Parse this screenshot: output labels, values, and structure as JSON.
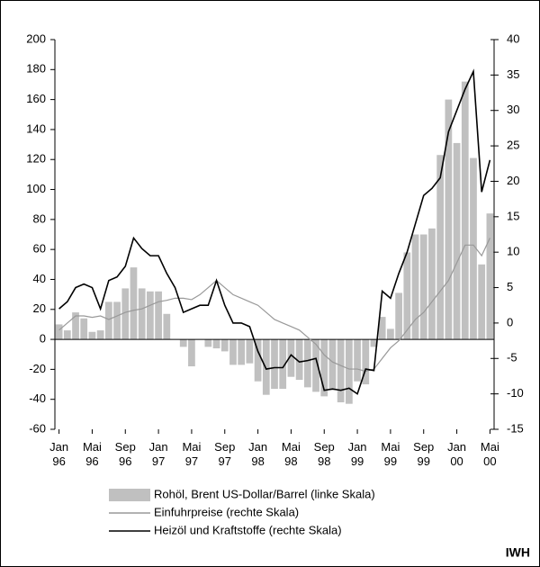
{
  "chart_data": {
    "type": "bar_line",
    "categories": [
      "Jan 96",
      null,
      null,
      null,
      "Mai 96",
      null,
      null,
      null,
      "Sep 96",
      null,
      null,
      null,
      "Jan 97",
      null,
      null,
      null,
      "Mai 97",
      null,
      null,
      null,
      "Sep 97",
      null,
      null,
      null,
      "Jan 98",
      null,
      null,
      null,
      "Mai 98",
      null,
      null,
      null,
      "Sep 98",
      null,
      null,
      null,
      "Jan 99",
      null,
      null,
      null,
      "Mai 99",
      null,
      null,
      null,
      "Sep 99",
      null,
      null,
      null,
      "Jan 00",
      null,
      null,
      null,
      "Mai 00"
    ],
    "series": [
      {
        "name": "Rohöl, Brent US-Dollar/Barrel (linke Skala)",
        "color": "#c0c0c0",
        "kind": "bar",
        "values": [
          10,
          6,
          18,
          14,
          5,
          6,
          25,
          25,
          34,
          48,
          34,
          32,
          32,
          17,
          0,
          -5,
          -18,
          0,
          -5,
          -6,
          -8,
          -17,
          -17,
          -16,
          -28,
          -37,
          -33,
          -33,
          -25,
          -27,
          -32,
          -35,
          -38,
          -34,
          -42,
          -43,
          -28,
          -30,
          -5,
          15,
          7,
          31,
          58,
          70,
          70,
          74,
          123,
          160,
          131,
          172,
          121,
          50,
          84
        ]
      },
      {
        "name": "Einfuhrpreise (rechte Skala)",
        "color": "#999999",
        "kind": "line",
        "axis": "y2",
        "values": [
          -1,
          0,
          1,
          1,
          0.8,
          1,
          0.5,
          1,
          1.5,
          1.8,
          2,
          2.5,
          3,
          3.2,
          3.5,
          3.5,
          3.3,
          4,
          5,
          6,
          5,
          4,
          3.5,
          3,
          2.5,
          1.5,
          0.5,
          0,
          -0.5,
          -1,
          -2,
          -3,
          -4.5,
          -5.5,
          -6,
          -6.5,
          -6.5,
          -6.8,
          -6.5,
          -5,
          -3.5,
          -2.5,
          -1,
          0.5,
          1.5,
          3,
          4.5,
          6,
          8.5,
          11,
          11,
          9.5,
          12
        ]
      },
      {
        "name": "Heizöl und Kraftstoffe (rechte Skala)",
        "color": "#000000",
        "kind": "line",
        "axis": "y2",
        "values": [
          2,
          3,
          5,
          5.5,
          5,
          2,
          6,
          6.5,
          8,
          12,
          10.5,
          9.5,
          9.5,
          7,
          5,
          1.5,
          2,
          2.5,
          2.5,
          6,
          2.5,
          0,
          0,
          -0.5,
          -4,
          -6.5,
          -6.3,
          -6.3,
          -4.5,
          -5.5,
          -5.3,
          -5,
          -9.5,
          -9.3,
          -9.5,
          -9.2,
          -10,
          -6.5,
          -6.7,
          4.5,
          3.5,
          7,
          10,
          14,
          18,
          19,
          20.5,
          27,
          30,
          33,
          35.5,
          18.5,
          23
        ]
      }
    ],
    "ylim": [
      -60,
      200
    ],
    "yticks": [
      -60,
      -40,
      -20,
      0,
      20,
      40,
      60,
      80,
      100,
      120,
      140,
      160,
      180,
      200
    ],
    "y2lim": [
      -15,
      40
    ],
    "y2ticks": [
      -15,
      -10,
      -5,
      0,
      5,
      10,
      15,
      20,
      25,
      30,
      35,
      40
    ],
    "source": "IWH"
  }
}
